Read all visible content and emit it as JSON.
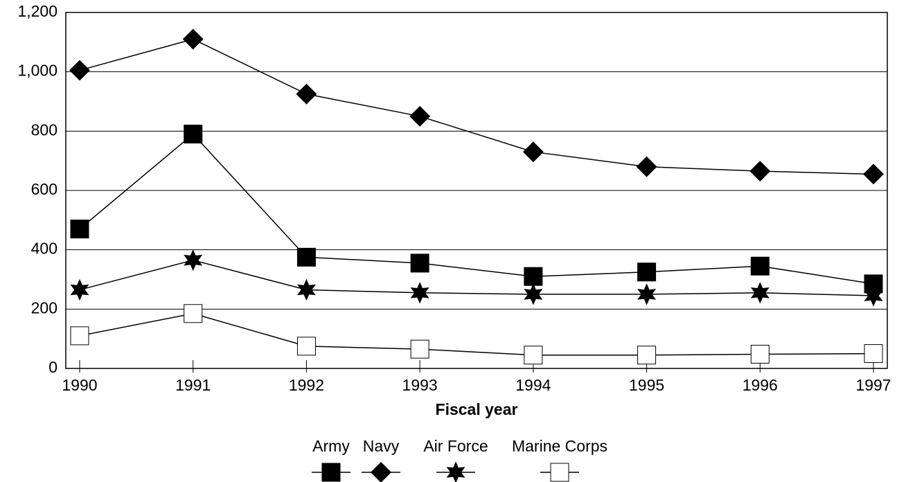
{
  "chart_data": {
    "type": "line",
    "x_label": "Fiscal year",
    "categories": [
      "1990",
      "1991",
      "1992",
      "1993",
      "1994",
      "1995",
      "1996",
      "1997"
    ],
    "series": [
      {
        "name": "Army",
        "color": "#000000",
        "marker": "square",
        "values": [
          470,
          790,
          375,
          355,
          310,
          325,
          345,
          285
        ]
      },
      {
        "name": "Navy",
        "color": "#000000",
        "marker": "diamond",
        "values": [
          1005,
          1110,
          925,
          850,
          730,
          680,
          665,
          655
        ]
      },
      {
        "name": "Air Force",
        "color": "#000000",
        "marker": "star",
        "values": [
          265,
          365,
          265,
          255,
          250,
          250,
          255,
          245
        ]
      },
      {
        "name": "Marine Corps",
        "color": "#000000",
        "marker": "open-square",
        "values": [
          110,
          185,
          75,
          65,
          45,
          45,
          48,
          50
        ]
      }
    ],
    "ylim": [
      0,
      1200
    ],
    "yticks": [
      0,
      200,
      400,
      600,
      800,
      {
        "value": 1000,
        "label": "1,000"
      },
      {
        "value": 1200,
        "label": "1,200"
      }
    ],
    "grid": true,
    "legend": "bottom"
  }
}
